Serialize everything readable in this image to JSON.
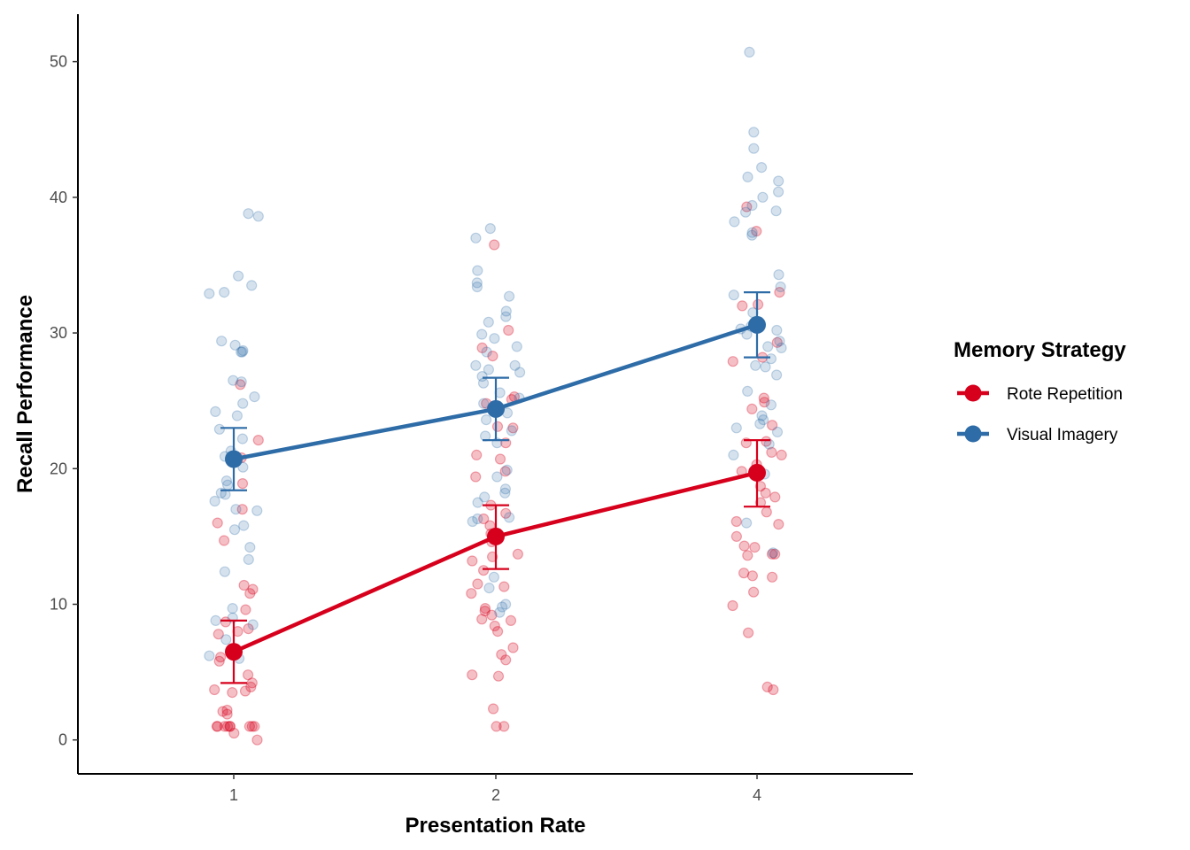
{
  "chart_data": {
    "type": "line",
    "xlabel": "Presentation Rate",
    "ylabel": "Recall Performance",
    "categories": [
      "1",
      "2",
      "4"
    ],
    "yticks": [
      0,
      10,
      20,
      30,
      40,
      50
    ],
    "ylim": [
      -2.5,
      53.5
    ],
    "grid": false,
    "legend": {
      "title": "Memory Strategy",
      "position": "right",
      "entries": [
        "Rote Repetition",
        "Visual Imagery"
      ]
    },
    "series": [
      {
        "name": "Rote Repetition",
        "color": "#d7001c",
        "means": [
          6.5,
          15.0,
          19.7
        ],
        "ci_lower": [
          4.2,
          12.6,
          17.2
        ],
        "ci_upper": [
          8.8,
          17.3,
          22.1
        ],
        "points": [
          [
            20.8,
            14.7,
            26.2,
            22.1,
            18.9,
            17.0,
            16.0,
            11.1,
            11.4,
            10.8,
            9.6,
            8.7,
            8.2,
            7.8,
            8.0,
            6.1,
            5.8,
            4.8,
            4.2,
            3.9,
            3.7,
            3.5,
            3.6,
            2.2,
            2.1,
            1.9,
            1.0,
            1.0,
            1.0,
            1.0,
            1.0,
            1.0,
            1.0,
            1.0,
            1.0,
            0.5,
            0.0
          ],
          [
            36.5,
            30.2,
            28.9,
            28.3,
            25.3,
            25.1,
            24.8,
            23.1,
            23.0,
            21.9,
            21.0,
            20.7,
            19.4,
            19.8,
            17.3,
            16.7,
            16.3,
            15.8,
            15.2,
            14.6,
            13.7,
            13.5,
            13.2,
            12.5,
            11.5,
            11.3,
            10.8,
            9.7,
            9.5,
            9.2,
            8.9,
            8.8,
            8.4,
            8.0,
            6.8,
            6.3,
            5.9,
            4.8,
            4.7,
            2.3,
            1.0,
            1.0
          ],
          [
            39.3,
            37.5,
            33.0,
            32.0,
            32.1,
            29.3,
            28.2,
            27.9,
            25.2,
            24.9,
            24.4,
            23.2,
            22.0,
            21.9,
            21.2,
            21.0,
            20.3,
            19.8,
            18.7,
            18.2,
            17.9,
            17.5,
            16.8,
            16.1,
            15.9,
            15.0,
            14.3,
            14.2,
            13.7,
            13.6,
            13.7,
            12.3,
            12.0,
            12.1,
            10.9,
            9.9,
            7.9,
            3.9,
            3.7
          ]
        ]
      },
      {
        "name": "Visual Imagery",
        "color": "#2e6ca8",
        "means": [
          20.7,
          24.4,
          30.6
        ],
        "ci_lower": [
          18.4,
          22.1,
          28.2
        ],
        "ci_upper": [
          23.0,
          26.7,
          33.0
        ],
        "points": [
          [
            38.8,
            38.6,
            34.2,
            33.5,
            33.0,
            32.9,
            29.4,
            29.1,
            28.6,
            28.7,
            28.6,
            26.5,
            26.4,
            25.3,
            24.8,
            24.2,
            23.9,
            22.9,
            22.2,
            21.3,
            20.9,
            20.1,
            19.1,
            18.8,
            18.2,
            18.1,
            17.6,
            17.0,
            16.9,
            15.8,
            15.5,
            14.2,
            13.3,
            12.4,
            9.7,
            9.0,
            8.8,
            8.5,
            7.4,
            6.2,
            6.0
          ],
          [
            37.7,
            37.0,
            34.6,
            33.7,
            33.4,
            32.7,
            31.6,
            31.2,
            30.8,
            29.9,
            29.6,
            29.0,
            28.6,
            27.6,
            27.6,
            27.3,
            27.1,
            26.8,
            26.3,
            25.6,
            25.2,
            24.8,
            24.1,
            23.6,
            22.8,
            22.4,
            21.9,
            19.9,
            19.4,
            18.5,
            18.2,
            17.9,
            17.5,
            16.4,
            16.1,
            16.3,
            14.8,
            12.0,
            11.2,
            10.0,
            9.8,
            9.4
          ],
          [
            50.7,
            44.8,
            43.6,
            42.2,
            41.5,
            41.2,
            40.4,
            40.0,
            39.4,
            39.0,
            38.9,
            38.2,
            37.4,
            37.2,
            34.3,
            33.4,
            32.8,
            31.5,
            30.5,
            30.3,
            30.2,
            29.9,
            29.4,
            29.0,
            28.9,
            28.1,
            27.6,
            27.5,
            26.9,
            25.7,
            24.7,
            23.9,
            23.6,
            23.3,
            23.0,
            22.7,
            21.8,
            21.0,
            19.6,
            16.0,
            13.8
          ]
        ]
      }
    ]
  }
}
